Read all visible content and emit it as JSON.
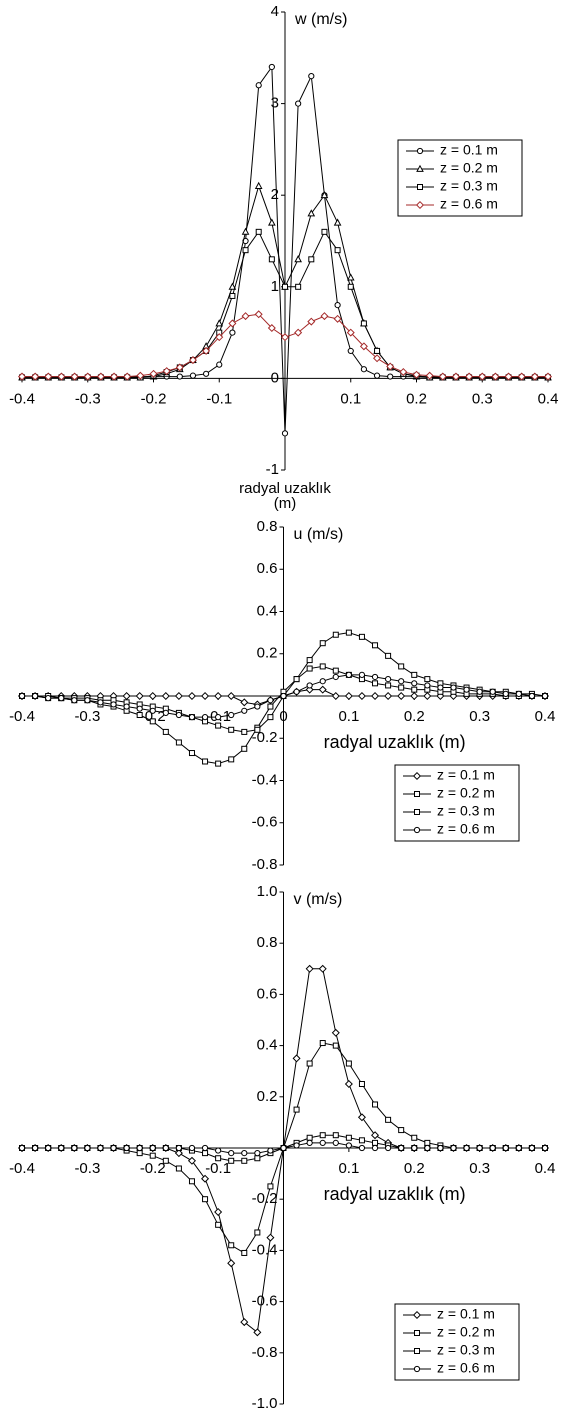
{
  "chart_data": [
    {
      "type": "line",
      "ylabel": "w (m/s)",
      "xlabel": "radyal uzaklık (m)",
      "xlim": [
        -0.4,
        0.4
      ],
      "ylim": [
        -1,
        4
      ],
      "xticks": [
        -0.4,
        -0.3,
        -0.2,
        -0.1,
        0.1,
        0.2,
        0.3,
        0.4
      ],
      "yticks": [
        -1,
        0,
        1,
        2,
        3,
        4
      ],
      "legend": "upper right",
      "x": [
        -0.4,
        -0.38,
        -0.36,
        -0.34,
        -0.32,
        -0.3,
        -0.28,
        -0.26,
        -0.24,
        -0.22,
        -0.2,
        -0.18,
        -0.16,
        -0.14,
        -0.12,
        -0.1,
        -0.08,
        -0.06,
        -0.04,
        -0.02,
        0,
        0.02,
        0.04,
        0.06,
        0.08,
        0.1,
        0.12,
        0.14,
        0.16,
        0.18,
        0.2,
        0.22,
        0.24,
        0.26,
        0.28,
        0.3,
        0.32,
        0.34,
        0.36,
        0.38,
        0.4
      ],
      "series": [
        {
          "name": "z = 0.1 m",
          "color": "#000000",
          "marker": "circle",
          "values": [
            0.02,
            0.02,
            0.02,
            0.02,
            0.02,
            0.02,
            0.02,
            0.02,
            0.02,
            0.02,
            0.02,
            0.02,
            0.02,
            0.03,
            0.05,
            0.15,
            0.5,
            1.5,
            3.2,
            3.4,
            -0.6,
            3.0,
            3.3,
            2.0,
            0.8,
            0.3,
            0.1,
            0.03,
            0.02,
            0.02,
            0.02,
            0.02,
            0.02,
            0.02,
            0.02,
            0.02,
            0.02,
            0.02,
            0.02,
            0.02,
            0.02
          ]
        },
        {
          "name": "z = 0.2 m",
          "color": "#000000",
          "marker": "triangle",
          "values": [
            0.01,
            0.01,
            0.01,
            0.01,
            0.01,
            0.01,
            0.01,
            0.01,
            0.01,
            0.01,
            0.02,
            0.05,
            0.1,
            0.2,
            0.35,
            0.6,
            1.0,
            1.6,
            2.1,
            1.7,
            1.0,
            1.3,
            1.8,
            2.0,
            1.7,
            1.1,
            0.6,
            0.3,
            0.12,
            0.05,
            0.02,
            0.01,
            0.01,
            0.01,
            0.01,
            0.01,
            0.01,
            0.01,
            0.01,
            0.01,
            0.01
          ]
        },
        {
          "name": "z = 0.3 m",
          "color": "#000000",
          "marker": "square",
          "values": [
            0.01,
            0.01,
            0.01,
            0.01,
            0.01,
            0.01,
            0.01,
            0.01,
            0.01,
            0.01,
            0.03,
            0.07,
            0.12,
            0.2,
            0.3,
            0.5,
            0.9,
            1.4,
            1.6,
            1.3,
            1.0,
            1.0,
            1.3,
            1.6,
            1.4,
            1.0,
            0.6,
            0.3,
            0.12,
            0.05,
            0.03,
            0.01,
            0.01,
            0.01,
            0.01,
            0.01,
            0.01,
            0.01,
            0.01,
            0.01,
            0.01
          ]
        },
        {
          "name": "z = 0.6 m",
          "color": "#a52a2a",
          "marker": "diamond",
          "values": [
            0.02,
            0.02,
            0.02,
            0.02,
            0.02,
            0.02,
            0.02,
            0.02,
            0.02,
            0.03,
            0.05,
            0.08,
            0.12,
            0.2,
            0.3,
            0.45,
            0.6,
            0.68,
            0.7,
            0.55,
            0.45,
            0.5,
            0.62,
            0.68,
            0.65,
            0.5,
            0.35,
            0.22,
            0.13,
            0.07,
            0.04,
            0.03,
            0.02,
            0.02,
            0.02,
            0.02,
            0.02,
            0.02,
            0.02,
            0.02,
            0.02
          ]
        }
      ]
    },
    {
      "type": "line",
      "ylabel": "u (m/s)",
      "xlabel": "radyal uzaklık (m)",
      "xlim": [
        -0.4,
        0.4
      ],
      "ylim": [
        -0.8,
        0.8
      ],
      "xticks": [
        -0.4,
        -0.3,
        -0.2,
        -0.1,
        0,
        0.1,
        0.2,
        0.3,
        0.4
      ],
      "yticks": [
        -0.8,
        -0.6,
        -0.4,
        -0.2,
        0.2,
        0.4,
        0.6,
        0.8
      ],
      "legend": "lower right",
      "x": [
        -0.4,
        -0.38,
        -0.36,
        -0.34,
        -0.32,
        -0.3,
        -0.28,
        -0.26,
        -0.24,
        -0.22,
        -0.2,
        -0.18,
        -0.16,
        -0.14,
        -0.12,
        -0.1,
        -0.08,
        -0.06,
        -0.04,
        -0.02,
        0,
        0.02,
        0.04,
        0.06,
        0.08,
        0.1,
        0.12,
        0.14,
        0.16,
        0.18,
        0.2,
        0.22,
        0.24,
        0.26,
        0.28,
        0.3,
        0.32,
        0.34,
        0.36,
        0.38,
        0.4
      ],
      "series": [
        {
          "name": "z = 0.1 m",
          "color": "#000000",
          "marker": "diamond",
          "values": [
            0,
            0,
            0,
            0,
            0,
            0,
            0,
            0,
            0,
            0,
            0,
            0,
            0,
            0,
            0,
            0,
            0,
            -0.03,
            -0.04,
            -0.02,
            0,
            0.02,
            0.03,
            0.03,
            0,
            0,
            0,
            0,
            0,
            0,
            0,
            0,
            0,
            0,
            0,
            0,
            0,
            0,
            0,
            0,
            0
          ]
        },
        {
          "name": "z = 0.2 m",
          "color": "#000000",
          "marker": "square",
          "values": [
            0,
            0,
            -0.01,
            -0.01,
            -0.02,
            -0.02,
            -0.04,
            -0.05,
            -0.07,
            -0.09,
            -0.12,
            -0.17,
            -0.22,
            -0.27,
            -0.31,
            -0.32,
            -0.3,
            -0.25,
            -0.15,
            -0.05,
            0.02,
            0.08,
            0.17,
            0.25,
            0.29,
            0.3,
            0.28,
            0.24,
            0.19,
            0.14,
            0.1,
            0.08,
            0.06,
            0.05,
            0.04,
            0.03,
            0.02,
            0.02,
            0.01,
            0.01,
            0
          ]
        },
        {
          "name": "z = 0.3 m",
          "color": "#000000",
          "marker": "square",
          "values": [
            0,
            0,
            0,
            -0.01,
            -0.01,
            -0.01,
            -0.02,
            -0.02,
            -0.03,
            -0.04,
            -0.05,
            -0.06,
            -0.08,
            -0.1,
            -0.12,
            -0.14,
            -0.16,
            -0.17,
            -0.16,
            -0.1,
            0,
            0.08,
            0.13,
            0.14,
            0.12,
            0.1,
            0.08,
            0.06,
            0.05,
            0.04,
            0.03,
            0.03,
            0.02,
            0.02,
            0.01,
            0.01,
            0.01,
            0,
            0,
            0,
            0
          ]
        },
        {
          "name": "z = 0.6 m",
          "color": "#000000",
          "marker": "circle",
          "values": [
            0,
            0,
            -0.01,
            -0.01,
            -0.02,
            -0.02,
            -0.03,
            -0.04,
            -0.05,
            -0.06,
            -0.07,
            -0.08,
            -0.09,
            -0.1,
            -0.1,
            -0.1,
            -0.09,
            -0.07,
            -0.05,
            -0.02,
            0,
            0.02,
            0.05,
            0.07,
            0.09,
            0.1,
            0.1,
            0.09,
            0.08,
            0.07,
            0.06,
            0.05,
            0.04,
            0.04,
            0.03,
            0.02,
            0.02,
            0.01,
            0.01,
            0,
            0
          ]
        }
      ]
    },
    {
      "type": "line",
      "ylabel": "v (m/s)",
      "xlabel": "radyal uzaklık (m)",
      "xlim": [
        -0.4,
        0.4
      ],
      "ylim": [
        -1,
        1
      ],
      "xticks": [
        -0.4,
        -0.3,
        -0.2,
        -0.1,
        0.1,
        0.2,
        0.3,
        0.4
      ],
      "yticks": [
        {
          "value": -1,
          "label": "-1.0"
        },
        -0.8,
        -0.6,
        -0.4,
        -0.2,
        0.2,
        0.4,
        0.6,
        0.8,
        {
          "value": 1,
          "label": "1.0"
        }
      ],
      "legend": "lower right",
      "x": [
        -0.4,
        -0.38,
        -0.36,
        -0.34,
        -0.32,
        -0.3,
        -0.28,
        -0.26,
        -0.24,
        -0.22,
        -0.2,
        -0.18,
        -0.16,
        -0.14,
        -0.12,
        -0.1,
        -0.08,
        -0.06,
        -0.04,
        -0.02,
        0,
        0.02,
        0.04,
        0.06,
        0.08,
        0.1,
        0.12,
        0.14,
        0.16,
        0.18,
        0.2,
        0.22,
        0.24,
        0.26,
        0.28,
        0.3,
        0.32,
        0.34,
        0.36,
        0.38,
        0.4
      ],
      "series": [
        {
          "name": "z = 0.1 m",
          "color": "#000000",
          "marker": "diamond",
          "values": [
            0,
            0,
            0,
            0,
            0,
            0,
            0,
            0,
            0,
            0,
            0,
            0,
            -0.02,
            -0.05,
            -0.12,
            -0.25,
            -0.45,
            -0.68,
            -0.72,
            -0.35,
            0,
            0.35,
            0.7,
            0.7,
            0.45,
            0.25,
            0.12,
            0.05,
            0.02,
            0,
            0,
            0,
            0,
            0,
            0,
            0,
            0,
            0,
            0,
            0,
            0
          ]
        },
        {
          "name": "z = 0.2 m",
          "color": "#000000",
          "marker": "square",
          "values": [
            0,
            0,
            0,
            0,
            0,
            0,
            0,
            0,
            -0.01,
            -0.02,
            -0.03,
            -0.05,
            -0.08,
            -0.13,
            -0.2,
            -0.3,
            -0.38,
            -0.41,
            -0.33,
            -0.15,
            0,
            0.15,
            0.33,
            0.41,
            0.4,
            0.33,
            0.25,
            0.17,
            0.11,
            0.07,
            0.04,
            0.02,
            0.01,
            0,
            0,
            0,
            0,
            0,
            0,
            0,
            0
          ]
        },
        {
          "name": "z = 0.3 m",
          "color": "#000000",
          "marker": "square",
          "values": [
            0,
            0,
            0,
            0,
            0,
            0,
            0,
            0,
            0,
            0,
            0,
            0,
            0,
            -0.01,
            -0.02,
            -0.04,
            -0.05,
            -0.05,
            -0.04,
            -0.02,
            0,
            0.02,
            0.04,
            0.05,
            0.05,
            0.04,
            0.03,
            0.02,
            0.01,
            0,
            0,
            0,
            0,
            0,
            0,
            0,
            0,
            0,
            0,
            0,
            0
          ]
        },
        {
          "name": "z = 0.6 m",
          "color": "#000000",
          "marker": "circle",
          "values": [
            0,
            0,
            0,
            0,
            0,
            0,
            0,
            0,
            0,
            0,
            0,
            0,
            0,
            0,
            0,
            -0.01,
            -0.02,
            -0.02,
            -0.02,
            -0.01,
            0,
            0.01,
            0.02,
            0.02,
            0.02,
            0.01,
            0,
            0,
            0,
            0,
            0,
            0,
            0,
            0,
            0,
            0,
            0,
            0,
            0,
            0,
            0
          ]
        }
      ]
    }
  ]
}
